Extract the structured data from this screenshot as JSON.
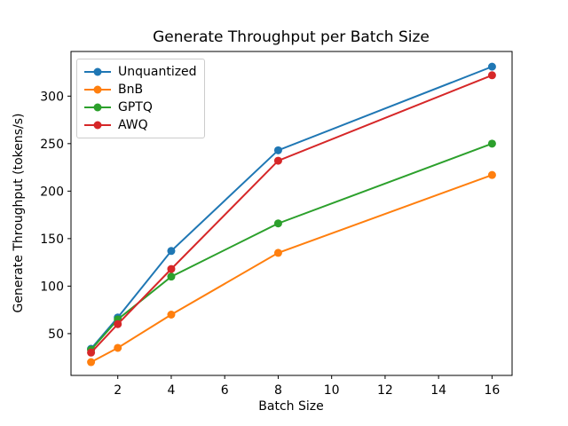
{
  "chart_data": {
    "type": "line",
    "title": "Generate Throughput per Batch Size",
    "xlabel": "Batch Size",
    "ylabel": "Generate Throughput (tokens/s)",
    "x": [
      1,
      2,
      4,
      8,
      16
    ],
    "series": [
      {
        "name": "Unquantized",
        "color": "#1f77b4",
        "marker": "circle",
        "values": [
          34,
          67,
          137,
          243,
          331
        ]
      },
      {
        "name": "BnB",
        "color": "#ff7f0e",
        "marker": "circle",
        "values": [
          20,
          35,
          70,
          135,
          217
        ]
      },
      {
        "name": "GPTQ",
        "color": "#2ca02c",
        "marker": "circle",
        "values": [
          33,
          65,
          110,
          166,
          250
        ]
      },
      {
        "name": "AWQ",
        "color": "#d62728",
        "marker": "circle",
        "values": [
          30,
          60,
          118,
          232,
          322
        ]
      }
    ],
    "xticks": [
      2,
      4,
      6,
      8,
      10,
      12,
      14,
      16
    ],
    "yticks": [
      50,
      100,
      150,
      200,
      250,
      300
    ],
    "xlim": [
      0.25,
      16.75
    ],
    "ylim": [
      6,
      347
    ],
    "grid": false,
    "legend": {
      "position": "upper-left",
      "frame": true
    },
    "axis_color": "#000000",
    "background_color": "#ffffff"
  }
}
